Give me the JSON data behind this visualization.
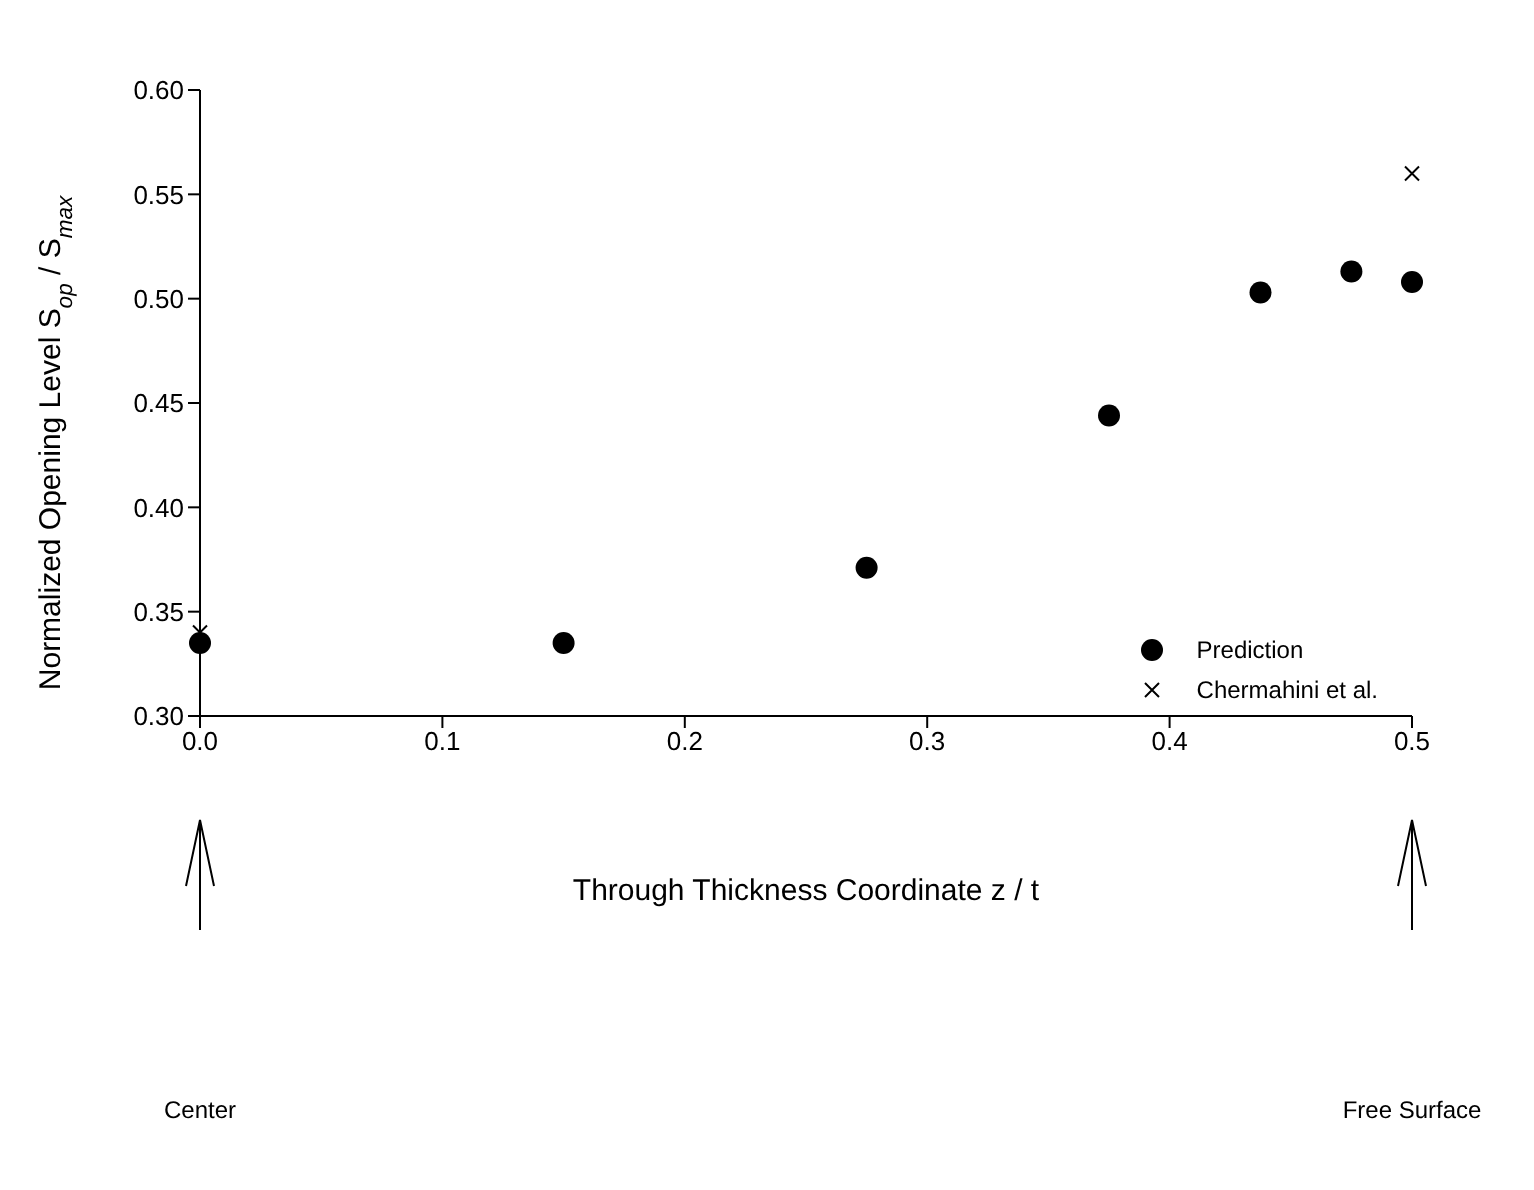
{
  "chart_data": {
    "type": "scatter",
    "xlabel": "Through Thickness Coordinate  z / t",
    "ylabel": "Normalized Opening Level   S$_{op}$ / S$_{max}$",
    "xlim": [
      0,
      0.5
    ],
    "xticks": [
      {
        "value": 0,
        "label": "0.0"
      },
      0.1,
      0.2,
      0.3,
      0.4,
      0.5
    ],
    "ylim": [
      0.3,
      0.6
    ],
    "yticks": [
      {
        "value": 0.3,
        "label": "0.30"
      },
      0.35,
      {
        "value": 0.4,
        "label": "0.40"
      },
      0.45,
      {
        "value": 0.5,
        "label": "0.50"
      },
      0.55,
      {
        "value": 0.6,
        "label": "0.60"
      }
    ],
    "series": [
      {
        "name": "Prediction",
        "color": "#000000",
        "marker": "circle",
        "x": [
          0,
          0.15,
          0.275,
          0.375,
          0.4375,
          0.475,
          0.5
        ],
        "values": [
          0.335,
          0.335,
          0.371,
          0.444,
          0.503,
          0.513,
          0.508
        ]
      },
      {
        "name": "Chermahini et al.",
        "color": "#000000",
        "marker": "cross",
        "x": [
          0,
          0.5
        ],
        "values": [
          0.34,
          0.56
        ]
      }
    ],
    "annotations": [
      "Center",
      "Free Surface"
    ],
    "grid": false,
    "legend": "bottom right"
  }
}
